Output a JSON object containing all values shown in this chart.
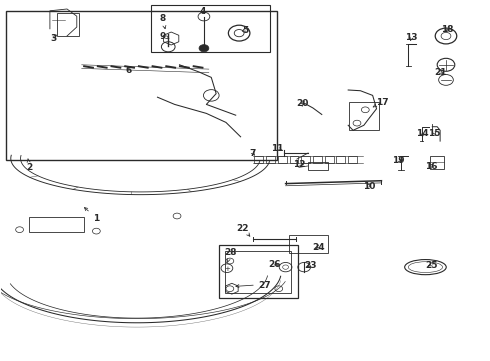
{
  "bg_color": "#ffffff",
  "line_color": "#2a2a2a",
  "lw": 0.75,
  "label_fs": 6.5,
  "figsize": [
    4.89,
    3.6
  ],
  "dpi": 100
}
